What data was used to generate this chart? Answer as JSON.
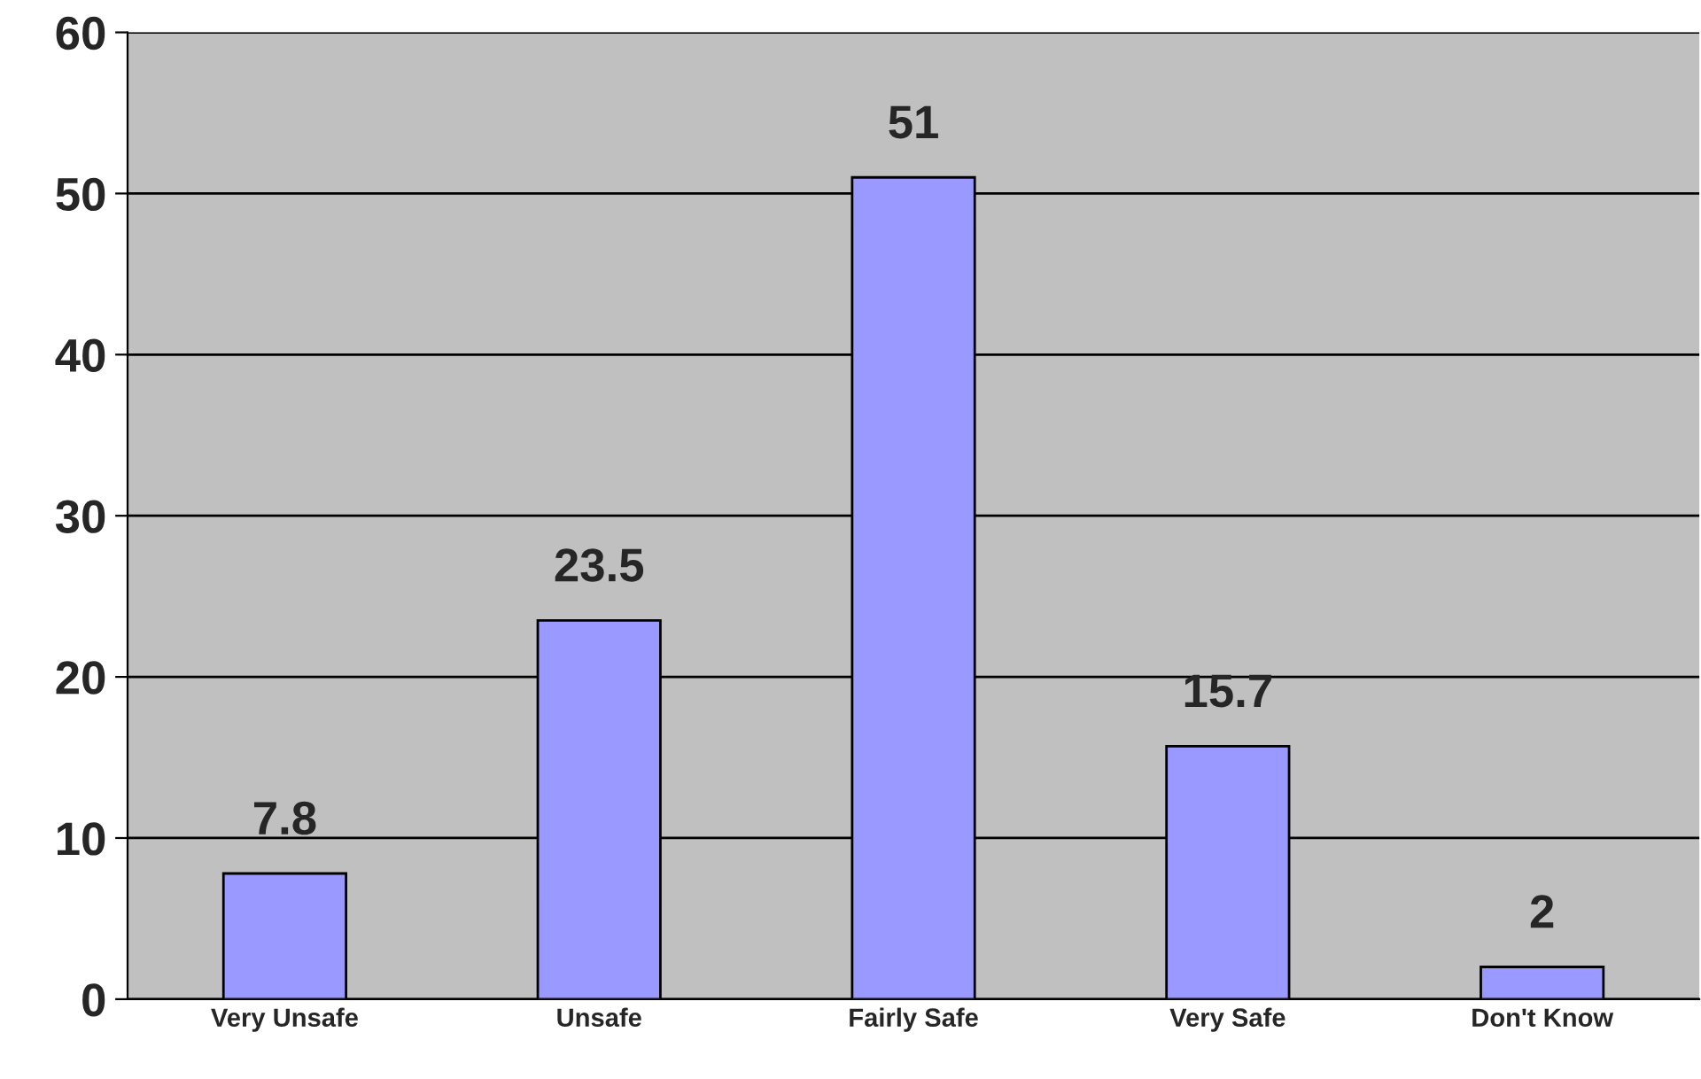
{
  "chart_data": {
    "type": "bar",
    "categories": [
      "Very Unsafe",
      "Unsafe",
      "Fairly Safe",
      "Very Safe",
      "Don't Know"
    ],
    "values": [
      7.8,
      23.5,
      51,
      15.7,
      2
    ],
    "color": "#9999ff",
    "ylim": [
      0,
      60
    ],
    "yticks": [
      0,
      10,
      20,
      30,
      40,
      50,
      60
    ],
    "grid": "y",
    "data_labels": true,
    "legend": false
  }
}
